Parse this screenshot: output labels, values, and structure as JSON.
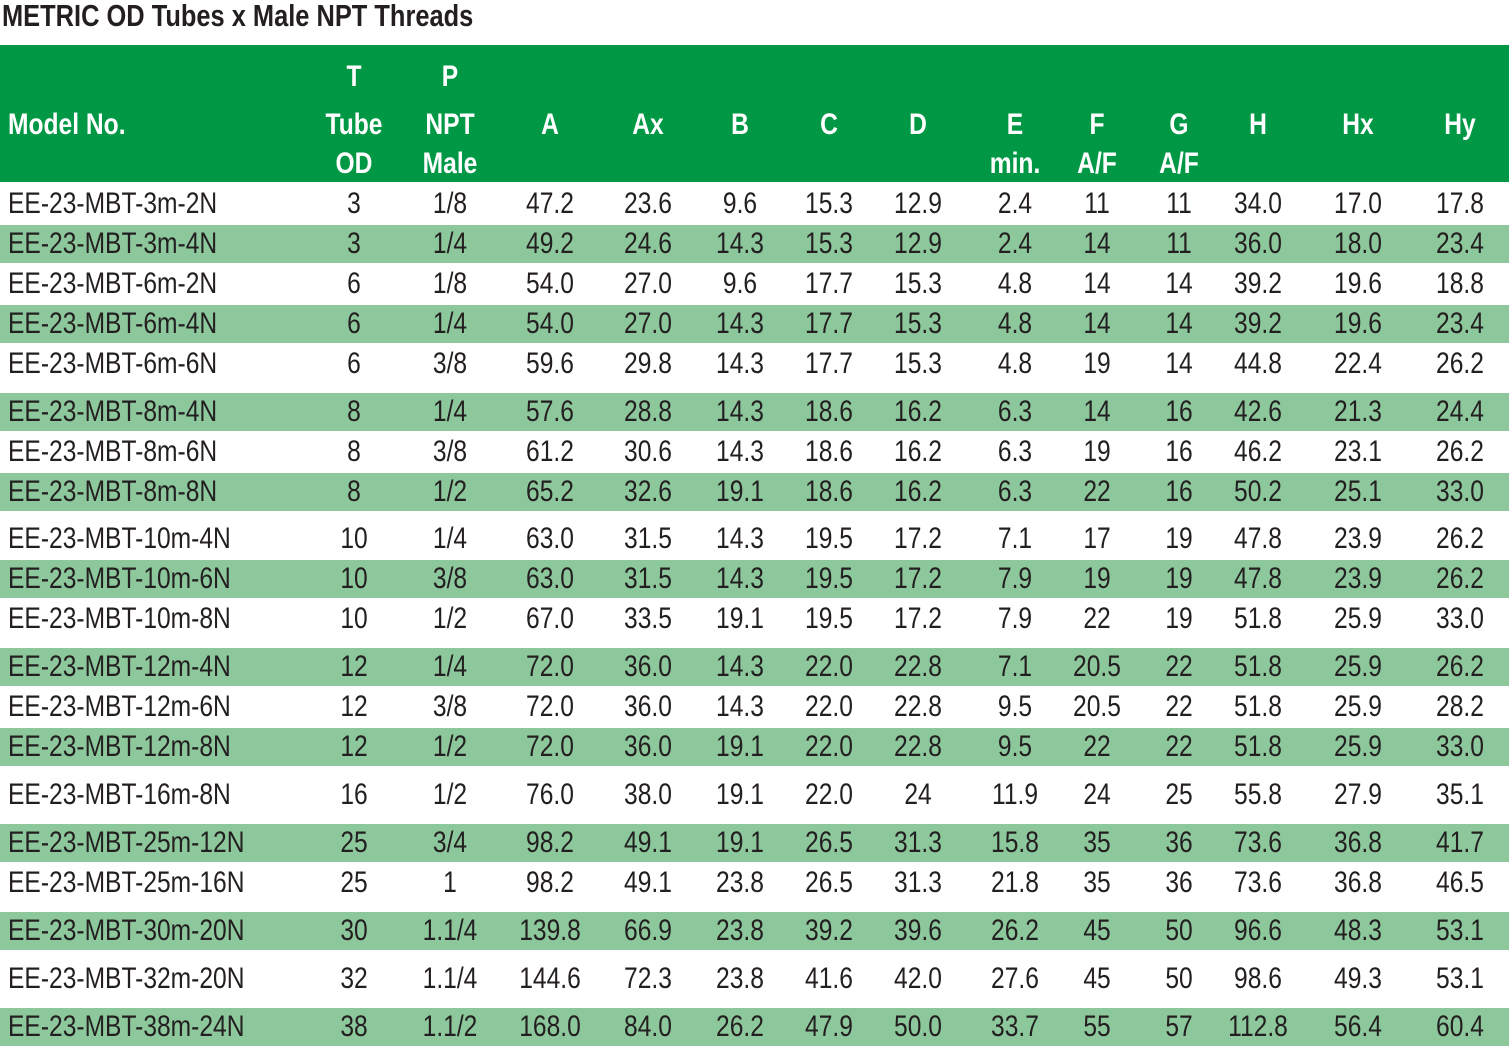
{
  "title": "METRIC OD Tubes  x  Male  NPT Threads",
  "colors": {
    "header_bg": "#009845",
    "stripe_bg": "#8dc89c",
    "text": "#231f20"
  },
  "columns": [
    {
      "key": "model",
      "lines": [
        "",
        "Model No.",
        ""
      ]
    },
    {
      "key": "T",
      "lines": [
        "T",
        "Tube",
        "OD"
      ]
    },
    {
      "key": "P",
      "lines": [
        "P",
        "NPT",
        "Male"
      ]
    },
    {
      "key": "A",
      "lines": [
        "",
        "A",
        ""
      ]
    },
    {
      "key": "Ax",
      "lines": [
        "",
        "Ax",
        ""
      ]
    },
    {
      "key": "B",
      "lines": [
        "",
        "B",
        ""
      ]
    },
    {
      "key": "C",
      "lines": [
        "",
        "C",
        ""
      ]
    },
    {
      "key": "D",
      "lines": [
        "",
        "D",
        ""
      ]
    },
    {
      "key": "E",
      "lines": [
        "",
        "E",
        "min."
      ]
    },
    {
      "key": "F",
      "lines": [
        "",
        "F",
        "A/F"
      ]
    },
    {
      "key": "G",
      "lines": [
        "",
        "G",
        "A/F"
      ]
    },
    {
      "key": "H",
      "lines": [
        "",
        "H",
        ""
      ]
    },
    {
      "key": "Hx",
      "lines": [
        "",
        "Hx",
        ""
      ]
    },
    {
      "key": "Hy",
      "lines": [
        "",
        "Hy",
        ""
      ]
    }
  ],
  "rows": [
    [
      "EE-23-MBT-3m-2N",
      "3",
      "1/8",
      "47.2",
      "23.6",
      "9.6",
      "15.3",
      "12.9",
      "2.4",
      "11",
      "11",
      "34.0",
      "17.0",
      "17.8"
    ],
    [
      "EE-23-MBT-3m-4N",
      "3",
      "1/4",
      "49.2",
      "24.6",
      "14.3",
      "15.3",
      "12.9",
      "2.4",
      "14",
      "11",
      "36.0",
      "18.0",
      "23.4"
    ],
    [
      "EE-23-MBT-6m-2N",
      "6",
      "1/8",
      "54.0",
      "27.0",
      "9.6",
      "17.7",
      "15.3",
      "4.8",
      "14",
      "14",
      "39.2",
      "19.6",
      "18.8"
    ],
    [
      "EE-23-MBT-6m-4N",
      "6",
      "1/4",
      "54.0",
      "27.0",
      "14.3",
      "17.7",
      "15.3",
      "4.8",
      "14",
      "14",
      "39.2",
      "19.6",
      "23.4"
    ],
    [
      "EE-23-MBT-6m-6N",
      "6",
      "3/8",
      "59.6",
      "29.8",
      "14.3",
      "17.7",
      "15.3",
      "4.8",
      "19",
      "14",
      "44.8",
      "22.4",
      "26.2"
    ],
    [
      "EE-23-MBT-8m-4N",
      "8",
      "1/4",
      "57.6",
      "28.8",
      "14.3",
      "18.6",
      "16.2",
      "6.3",
      "14",
      "16",
      "42.6",
      "21.3",
      "24.4"
    ],
    [
      "EE-23-MBT-8m-6N",
      "8",
      "3/8",
      "61.2",
      "30.6",
      "14.3",
      "18.6",
      "16.2",
      "6.3",
      "19",
      "16",
      "46.2",
      "23.1",
      "26.2"
    ],
    [
      "EE-23-MBT-8m-8N",
      "8",
      "1/2",
      "65.2",
      "32.6",
      "19.1",
      "18.6",
      "16.2",
      "6.3",
      "22",
      "16",
      "50.2",
      "25.1",
      "33.0"
    ],
    [
      "EE-23-MBT-10m-4N",
      "10",
      "1/4",
      "63.0",
      "31.5",
      "14.3",
      "19.5",
      "17.2",
      "7.1",
      "17",
      "19",
      "47.8",
      "23.9",
      "26.2"
    ],
    [
      "EE-23-MBT-10m-6N",
      "10",
      "3/8",
      "63.0",
      "31.5",
      "14.3",
      "19.5",
      "17.2",
      "7.9",
      "19",
      "19",
      "47.8",
      "23.9",
      "26.2"
    ],
    [
      "EE-23-MBT-10m-8N",
      "10",
      "1/2",
      "67.0",
      "33.5",
      "19.1",
      "19.5",
      "17.2",
      "7.9",
      "22",
      "19",
      "51.8",
      "25.9",
      "33.0"
    ],
    [
      "EE-23-MBT-12m-4N",
      "12",
      "1/4",
      "72.0",
      "36.0",
      "14.3",
      "22.0",
      "22.8",
      "7.1",
      "20.5",
      "22",
      "51.8",
      "25.9",
      "26.2"
    ],
    [
      "EE-23-MBT-12m-6N",
      "12",
      "3/8",
      "72.0",
      "36.0",
      "14.3",
      "22.0",
      "22.8",
      "9.5",
      "20.5",
      "22",
      "51.8",
      "25.9",
      "28.2"
    ],
    [
      "EE-23-MBT-12m-8N",
      "12",
      "1/2",
      "72.0",
      "36.0",
      "19.1",
      "22.0",
      "22.8",
      "9.5",
      "22",
      "22",
      "51.8",
      "25.9",
      "33.0"
    ],
    [
      "EE-23-MBT-16m-8N",
      "16",
      "1/2",
      "76.0",
      "38.0",
      "19.1",
      "22.0",
      "24",
      "11.9",
      "24",
      "25",
      "55.8",
      "27.9",
      "35.1"
    ],
    [
      "EE-23-MBT-25m-12N",
      "25",
      "3/4",
      "98.2",
      "49.1",
      "19.1",
      "26.5",
      "31.3",
      "15.8",
      "35",
      "36",
      "73.6",
      "36.8",
      "41.7"
    ],
    [
      "EE-23-MBT-25m-16N",
      "25",
      "1",
      "98.2",
      "49.1",
      "23.8",
      "26.5",
      "31.3",
      "21.8",
      "35",
      "36",
      "73.6",
      "36.8",
      "46.5"
    ],
    [
      "EE-23-MBT-30m-20N",
      "30",
      "1.1/4",
      "139.8",
      "66.9",
      "23.8",
      "39.2",
      "39.6",
      "26.2",
      "45",
      "50",
      "96.6",
      "48.3",
      "53.1"
    ],
    [
      "EE-23-MBT-32m-20N",
      "32",
      "1.1/4",
      "144.6",
      "72.3",
      "23.8",
      "41.6",
      "42.0",
      "27.6",
      "45",
      "50",
      "98.6",
      "49.3",
      "53.1"
    ],
    [
      "EE-23-MBT-38m-24N",
      "38",
      "1.1/2",
      "168.0",
      "84.0",
      "26.2",
      "47.9",
      "50.0",
      "33.7",
      "55",
      "57",
      "112.8",
      "56.4",
      "60.4"
    ]
  ]
}
